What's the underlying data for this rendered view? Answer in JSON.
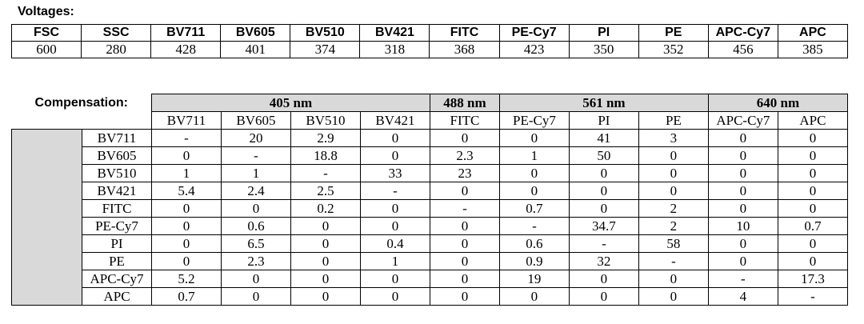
{
  "voltages": {
    "label": "Voltages:",
    "headers": [
      "FSC",
      "SSC",
      "BV711",
      "BV605",
      "BV510",
      "BV421",
      "FITC",
      "PE-Cy7",
      "PI",
      "PE",
      "APC-Cy7",
      "APC"
    ],
    "values": [
      600,
      280,
      428,
      401,
      374,
      318,
      368,
      423,
      350,
      352,
      456,
      385
    ]
  },
  "compensation": {
    "label": "Compensation:",
    "groups": [
      {
        "name": "405 nm",
        "channels": [
          "BV711",
          "BV605",
          "BV510",
          "BV421"
        ]
      },
      {
        "name": "488 nm",
        "channels": [
          "FITC"
        ]
      },
      {
        "name": "561 nm",
        "channels": [
          "PE-Cy7",
          "PI",
          "PE"
        ]
      },
      {
        "name": "640 nm",
        "channels": [
          "APC-Cy7",
          "APC"
        ]
      }
    ],
    "rows": [
      {
        "label": "BV711",
        "values": [
          "-",
          20,
          2.9,
          0,
          0,
          0,
          41,
          3,
          0,
          0
        ]
      },
      {
        "label": "BV605",
        "values": [
          0,
          "-",
          18.8,
          0,
          2.3,
          1,
          50,
          0,
          0,
          0
        ]
      },
      {
        "label": "BV510",
        "values": [
          1,
          1,
          "-",
          33,
          23,
          0,
          0,
          0,
          0,
          0
        ]
      },
      {
        "label": "BV421",
        "values": [
          5.4,
          2.4,
          2.5,
          "-",
          0,
          0,
          0,
          0,
          0,
          0
        ]
      },
      {
        "label": "FITC",
        "values": [
          0,
          0,
          0.2,
          0,
          "-",
          0.7,
          0,
          2,
          0,
          0
        ]
      },
      {
        "label": "PE-Cy7",
        "values": [
          0,
          0.6,
          0,
          0,
          0,
          "-",
          34.7,
          2,
          10,
          0.7
        ]
      },
      {
        "label": "PI",
        "values": [
          0,
          6.5,
          0,
          0.4,
          0,
          0.6,
          "-",
          58,
          0,
          0
        ]
      },
      {
        "label": "PE",
        "values": [
          0,
          2.3,
          0,
          1,
          0,
          0.9,
          32,
          "-",
          0,
          0
        ]
      },
      {
        "label": "APC-Cy7",
        "values": [
          5.2,
          0,
          0,
          0,
          0,
          19,
          0,
          0,
          "-",
          17.3
        ]
      },
      {
        "label": "APC",
        "values": [
          0.7,
          0,
          0,
          0,
          0,
          0,
          0,
          0,
          4,
          "-"
        ]
      }
    ]
  }
}
